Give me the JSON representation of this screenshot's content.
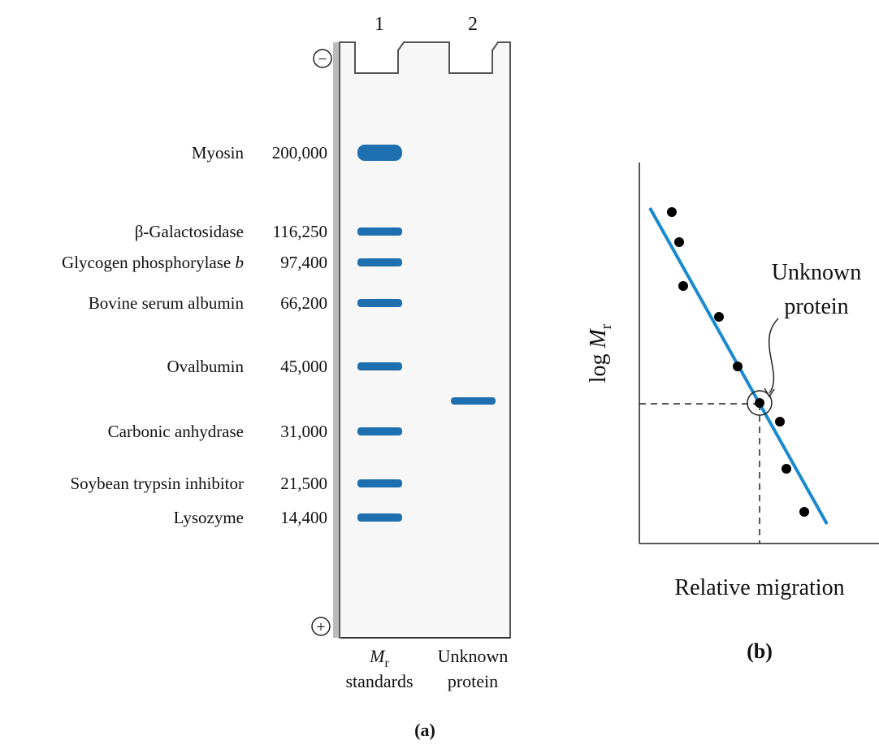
{
  "gel": {
    "lanes": [
      "1",
      "2"
    ],
    "electrodes": {
      "negative": "−",
      "positive": "+"
    },
    "standards": [
      {
        "name": "Myosin",
        "mr": "200,000"
      },
      {
        "name": "β-Galactosidase",
        "mr": "116,250"
      },
      {
        "name": "Glycogen phosphorylase",
        "italic": "b",
        "mr": "97,400"
      },
      {
        "name": "Bovine serum albumin",
        "mr": "66,200"
      },
      {
        "name": "Ovalbumin",
        "mr": "45,000"
      },
      {
        "name": "Carbonic anhydrase",
        "mr": "31,000"
      },
      {
        "name": "Soybean trypsin inhibitor",
        "mr": "21,500"
      },
      {
        "name": "Lysozyme",
        "mr": "14,400"
      }
    ],
    "lane_labels": {
      "standards": {
        "symbol": "M",
        "subscript": "r",
        "text": "standards"
      },
      "unknown": [
        "Unknown",
        "protein"
      ]
    },
    "caption": "(a)"
  },
  "plot": {
    "y_label": {
      "text": "log",
      "symbol": "M",
      "subscript": "r"
    },
    "x_label": "Relative migration",
    "annotation": [
      "Unknown",
      "protein"
    ],
    "caption": "(b)"
  }
}
